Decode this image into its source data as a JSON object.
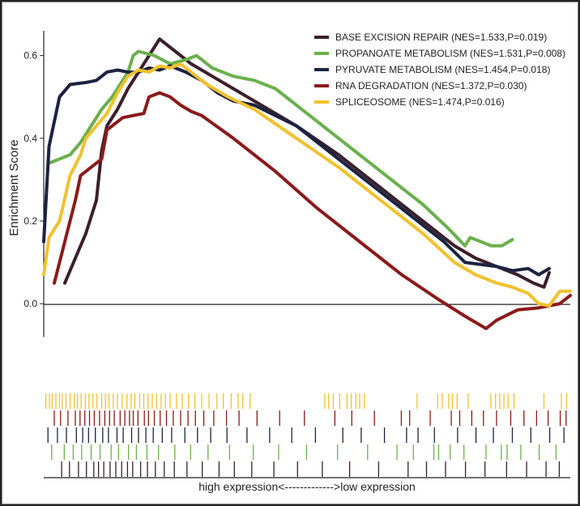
{
  "chart_data": {
    "type": "line",
    "ylabel": "Enrichment Score",
    "xcaption": "high expression<------------->low expression",
    "ylim": [
      -0.08,
      0.66
    ],
    "yticks": [
      0.0,
      0.2,
      0.4,
      0.6
    ],
    "ytick_labels": [
      "0.0",
      "0.2",
      "0.4",
      "0.6"
    ],
    "x_range": [
      0,
      100
    ],
    "legend_position": "top-right",
    "series": [
      {
        "name": "BASE EXCISION REPAIR (NES=1.533,P=0.019)",
        "color": "#3b1f2b",
        "points": [
          [
            4,
            0.05
          ],
          [
            6,
            0.11
          ],
          [
            8,
            0.17
          ],
          [
            10,
            0.25
          ],
          [
            11,
            0.37
          ],
          [
            12,
            0.43
          ],
          [
            14,
            0.47
          ],
          [
            16,
            0.52
          ],
          [
            18,
            0.56
          ],
          [
            19,
            0.58
          ],
          [
            21,
            0.62
          ],
          [
            22,
            0.64
          ],
          [
            25,
            0.61
          ],
          [
            28,
            0.58
          ],
          [
            32,
            0.55
          ],
          [
            36,
            0.52
          ],
          [
            40,
            0.49
          ],
          [
            48,
            0.43
          ],
          [
            56,
            0.36
          ],
          [
            64,
            0.28
          ],
          [
            72,
            0.2
          ],
          [
            78,
            0.14
          ],
          [
            82,
            0.11
          ],
          [
            86,
            0.09
          ],
          [
            90,
            0.07
          ],
          [
            93,
            0.05
          ],
          [
            95,
            0.04
          ],
          [
            96,
            0.075
          ]
        ]
      },
      {
        "name": "PROPANOATE METABOLISM (NES=1.531,P=0.008)",
        "color": "#6ab04c",
        "points": [
          [
            1,
            0.34
          ],
          [
            3,
            0.35
          ],
          [
            5,
            0.36
          ],
          [
            7,
            0.39
          ],
          [
            9,
            0.43
          ],
          [
            11,
            0.47
          ],
          [
            13,
            0.5
          ],
          [
            15,
            0.54
          ],
          [
            16,
            0.56
          ],
          [
            17,
            0.6
          ],
          [
            18,
            0.61
          ],
          [
            21,
            0.6
          ],
          [
            24,
            0.58
          ],
          [
            27,
            0.59
          ],
          [
            29,
            0.6
          ],
          [
            32,
            0.57
          ],
          [
            36,
            0.55
          ],
          [
            40,
            0.54
          ],
          [
            44,
            0.52
          ],
          [
            48,
            0.48
          ],
          [
            56,
            0.4
          ],
          [
            64,
            0.32
          ],
          [
            72,
            0.24
          ],
          [
            77,
            0.18
          ],
          [
            80,
            0.14
          ],
          [
            81,
            0.16
          ],
          [
            83,
            0.15
          ],
          [
            85,
            0.14
          ],
          [
            87,
            0.14
          ],
          [
            89,
            0.155
          ]
        ]
      },
      {
        "name": "PYRUVATE METABOLISM (NES=1.454,P=0.018)",
        "color": "#1c2340",
        "points": [
          [
            0,
            0.15
          ],
          [
            1,
            0.38
          ],
          [
            3,
            0.5
          ],
          [
            5,
            0.53
          ],
          [
            8,
            0.535
          ],
          [
            10,
            0.54
          ],
          [
            12,
            0.56
          ],
          [
            14,
            0.565
          ],
          [
            16,
            0.56
          ],
          [
            18,
            0.56
          ],
          [
            20,
            0.57
          ],
          [
            22,
            0.565
          ],
          [
            24,
            0.575
          ],
          [
            27,
            0.56
          ],
          [
            30,
            0.54
          ],
          [
            33,
            0.51
          ],
          [
            36,
            0.49
          ],
          [
            40,
            0.48
          ],
          [
            48,
            0.43
          ],
          [
            56,
            0.35
          ],
          [
            64,
            0.27
          ],
          [
            70,
            0.21
          ],
          [
            76,
            0.15
          ],
          [
            80,
            0.1
          ],
          [
            83,
            0.095
          ],
          [
            86,
            0.09
          ],
          [
            89,
            0.08
          ],
          [
            92,
            0.085
          ],
          [
            94,
            0.07
          ],
          [
            96,
            0.085
          ]
        ]
      },
      {
        "name": "RNA DEGRADATION (NES=1.372,P=0.030)",
        "color": "#8b1a1a",
        "points": [
          [
            2,
            0.05
          ],
          [
            4,
            0.15
          ],
          [
            6,
            0.25
          ],
          [
            7,
            0.31
          ],
          [
            9,
            0.33
          ],
          [
            11,
            0.35
          ],
          [
            12,
            0.42
          ],
          [
            14,
            0.44
          ],
          [
            15,
            0.45
          ],
          [
            17,
            0.455
          ],
          [
            19,
            0.46
          ],
          [
            20,
            0.5
          ],
          [
            22,
            0.51
          ],
          [
            24,
            0.5
          ],
          [
            26,
            0.48
          ],
          [
            28,
            0.465
          ],
          [
            30,
            0.455
          ],
          [
            36,
            0.4
          ],
          [
            44,
            0.32
          ],
          [
            52,
            0.23
          ],
          [
            60,
            0.15
          ],
          [
            68,
            0.07
          ],
          [
            75,
            0.01
          ],
          [
            80,
            -0.03
          ],
          [
            84,
            -0.06
          ],
          [
            86,
            -0.04
          ],
          [
            90,
            -0.015
          ],
          [
            94,
            -0.01
          ],
          [
            98,
            0.0
          ],
          [
            100,
            0.02
          ]
        ]
      },
      {
        "name": "SPLICEOSOME (NES=1.474,P=0.016)",
        "color": "#f2c12e",
        "points": [
          [
            0,
            0.07
          ],
          [
            1,
            0.16
          ],
          [
            3,
            0.2
          ],
          [
            5,
            0.31
          ],
          [
            7,
            0.36
          ],
          [
            8,
            0.4
          ],
          [
            10,
            0.43
          ],
          [
            12,
            0.46
          ],
          [
            14,
            0.51
          ],
          [
            16,
            0.55
          ],
          [
            18,
            0.565
          ],
          [
            20,
            0.56
          ],
          [
            22,
            0.575
          ],
          [
            24,
            0.57
          ],
          [
            26,
            0.58
          ],
          [
            28,
            0.56
          ],
          [
            31,
            0.53
          ],
          [
            35,
            0.5
          ],
          [
            40,
            0.47
          ],
          [
            48,
            0.4
          ],
          [
            56,
            0.33
          ],
          [
            64,
            0.25
          ],
          [
            72,
            0.17
          ],
          [
            78,
            0.1
          ],
          [
            82,
            0.07
          ],
          [
            86,
            0.05
          ],
          [
            89,
            0.04
          ],
          [
            92,
            0.025
          ],
          [
            94,
            0.0
          ],
          [
            96,
            -0.005
          ],
          [
            98,
            0.03
          ],
          [
            100,
            0.03
          ]
        ]
      }
    ],
    "hit_rows": [
      {
        "color": "#f2c12e",
        "hits": [
          0.4,
          1.1,
          1.6,
          2.3,
          3.0,
          3.5,
          4.2,
          5.0,
          5.8,
          6.4,
          7.1,
          7.9,
          8.6,
          9.3,
          10.1,
          11.0,
          11.7,
          12.4,
          13.2,
          14.0,
          14.9,
          15.8,
          16.6,
          17.3,
          18.2,
          19.0,
          19.8,
          20.6,
          21.4,
          22.3,
          23.1,
          24.0,
          25.2,
          26.3,
          27.5,
          28.7,
          30.0,
          31.4,
          32.9,
          34.1,
          35.6,
          36.9,
          37.8,
          39.2,
          53.4,
          54.1,
          55.0,
          56.2,
          57.6,
          58.4,
          59.3,
          60.0,
          60.9,
          70.9,
          74.8,
          75.7,
          76.9,
          77.6,
          78.5,
          80.6,
          84.9,
          85.8,
          86.6,
          87.4,
          88.2,
          89.3,
          95.0,
          98.3,
          99.3
        ]
      },
      {
        "color": "#8b1a1a",
        "hits": [
          2.0,
          3.2,
          4.6,
          6.0,
          6.9,
          7.8,
          8.7,
          9.6,
          10.6,
          11.6,
          12.5,
          13.4,
          14.5,
          15.4,
          16.3,
          17.0,
          17.9,
          19.1,
          19.9,
          21.0,
          22.1,
          23.3,
          24.6,
          26.0,
          27.4,
          28.8,
          30.4,
          32.3,
          34.7,
          37.1,
          40.5,
          44.8,
          49.5,
          55.3,
          58.5,
          62.8,
          67.9,
          69.5,
          73.4,
          77.4,
          79.0,
          81.3,
          83.5,
          86.0,
          88.7,
          91.2,
          93.6,
          95.8,
          98.1,
          99.2
        ]
      },
      {
        "color": "#1c2340",
        "hits": [
          0.8,
          2.6,
          4.3,
          6.2,
          7.4,
          8.5,
          9.8,
          11.2,
          12.3,
          13.9,
          15.1,
          16.7,
          18.0,
          19.4,
          20.8,
          22.5,
          24.3,
          26.8,
          29.2,
          31.7,
          34.8,
          38.6,
          42.9,
          47.1,
          51.6,
          56.8,
          60.3,
          64.7,
          68.9,
          71.1,
          74.2,
          78.6,
          82.1,
          85.4,
          89.0,
          92.5,
          96.1,
          98.8
        ]
      },
      {
        "color": "#6ab04c",
        "hits": [
          1.5,
          3.9,
          5.6,
          7.2,
          9.0,
          10.7,
          12.8,
          14.2,
          16.1,
          17.6,
          19.6,
          21.8,
          24.9,
          27.9,
          31.2,
          35.3,
          39.8,
          44.6,
          49.9,
          55.8,
          61.5,
          67.1,
          70.2,
          74.1,
          75.0,
          77.2,
          79.8,
          84.0,
          86.9,
          88.0,
          90.6,
          94.1,
          97.3
        ]
      },
      {
        "color": "#3b1f2b",
        "hits": [
          3.4,
          4.9,
          6.6,
          8.1,
          9.5,
          10.4,
          11.4,
          12.6,
          13.7,
          14.8,
          15.9,
          16.9,
          18.4,
          19.7,
          21.2,
          22.9,
          24.8,
          27.2,
          30.1,
          33.3,
          36.2,
          39.5,
          43.7,
          48.2,
          52.9,
          58.1,
          63.6,
          69.2,
          72.7,
          76.3,
          80.1,
          83.8,
          87.9,
          91.7,
          95.4,
          97.9
        ]
      }
    ]
  }
}
